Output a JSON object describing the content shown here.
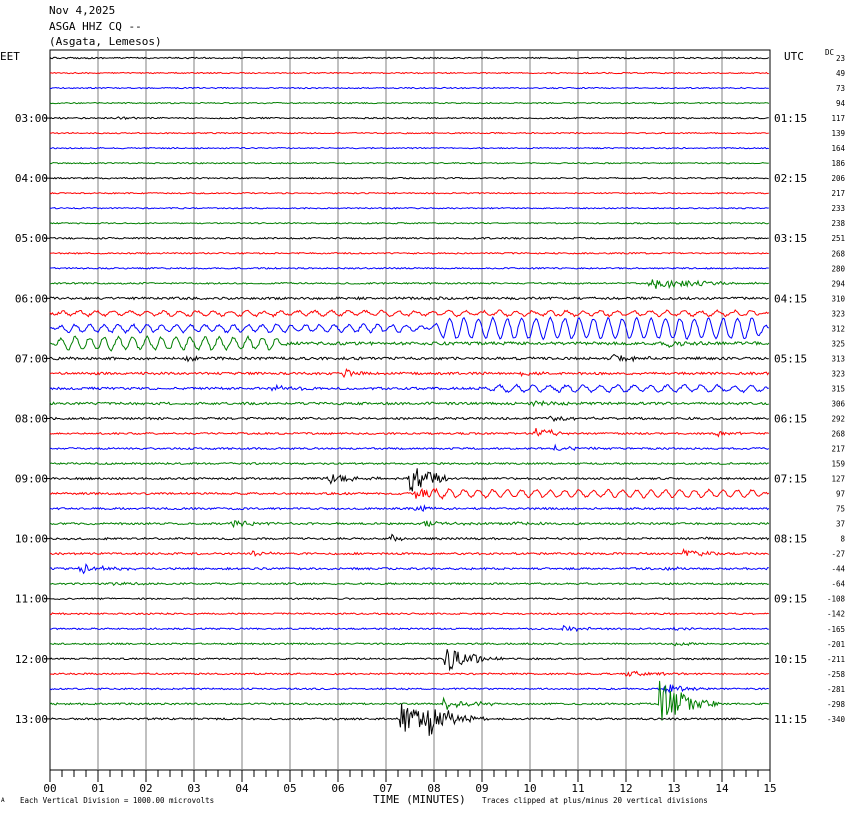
{
  "header": {
    "date": "Nov 4,2025",
    "station": "ASGA HHZ CQ --",
    "location": "(Asgata, Lemesos)"
  },
  "left_zone_label": "EET",
  "right_zone_label": "UTC",
  "dc_label": "DC",
  "footer": {
    "scale_note": "Each Vertical Division = 1000.00 microvolts",
    "x_title": "TIME (MINUTES)",
    "clip_note": "Traces clipped at plus/minus 20 vertical divisions",
    "corner_mark": "A"
  },
  "colors": {
    "trace_cycle": [
      "#000000",
      "#ff0000",
      "#0000ff",
      "#007f00"
    ],
    "grid": "#808080"
  },
  "chart_data": {
    "type": "line",
    "x_axis": {
      "label": "TIME (MINUTES)",
      "range": [
        0,
        15
      ],
      "ticks": [
        "00",
        "01",
        "02",
        "03",
        "04",
        "05",
        "06",
        "07",
        "08",
        "09",
        "10",
        "11",
        "12",
        "13",
        "14",
        "15"
      ]
    },
    "left_hour_labels": [
      {
        "row": 4,
        "text": "03:00"
      },
      {
        "row": 8,
        "text": "04:00"
      },
      {
        "row": 12,
        "text": "05:00"
      },
      {
        "row": 16,
        "text": "06:00"
      },
      {
        "row": 20,
        "text": "07:00"
      },
      {
        "row": 24,
        "text": "08:00"
      },
      {
        "row": 28,
        "text": "09:00"
      },
      {
        "row": 32,
        "text": "10:00"
      },
      {
        "row": 36,
        "text": "11:00"
      },
      {
        "row": 40,
        "text": "12:00"
      },
      {
        "row": 44,
        "text": "13:00"
      }
    ],
    "right_hour_labels": [
      {
        "row": 4,
        "text": "01:15"
      },
      {
        "row": 8,
        "text": "02:15"
      },
      {
        "row": 12,
        "text": "03:15"
      },
      {
        "row": 16,
        "text": "04:15"
      },
      {
        "row": 20,
        "text": "05:15"
      },
      {
        "row": 24,
        "text": "06:15"
      },
      {
        "row": 28,
        "text": "07:15"
      },
      {
        "row": 32,
        "text": "08:15"
      },
      {
        "row": 36,
        "text": "09:15"
      },
      {
        "row": 40,
        "text": "10:15"
      },
      {
        "row": 44,
        "text": "11:15"
      }
    ],
    "dc_offsets": [
      "23",
      "49",
      "73",
      "94",
      "117",
      "139",
      "164",
      "186",
      "206",
      "217",
      "233",
      "238",
      "251",
      "268",
      "280",
      "294",
      "310",
      "323",
      "312",
      "325",
      "313",
      "323",
      "315",
      "306",
      "292",
      "268",
      "217",
      "159",
      "127",
      "97",
      "75",
      "37",
      "8",
      "-27",
      "-44",
      "-64",
      "-108",
      "-142",
      "-165",
      "-201",
      "-211",
      "-258",
      "-281",
      "-298",
      "-340"
    ],
    "rows": [
      {
        "noise": 0.7,
        "events": []
      },
      {
        "noise": 0.6,
        "events": []
      },
      {
        "noise": 0.6,
        "events": []
      },
      {
        "noise": 0.6,
        "events": []
      },
      {
        "noise": 0.7,
        "events": [
          {
            "t": 1.4,
            "amp": 1.5,
            "dur": 0.3
          }
        ]
      },
      {
        "noise": 0.6,
        "events": []
      },
      {
        "noise": 0.6,
        "events": []
      },
      {
        "noise": 0.6,
        "events": []
      },
      {
        "noise": 0.7,
        "events": []
      },
      {
        "noise": 0.6,
        "events": []
      },
      {
        "noise": 0.6,
        "events": []
      },
      {
        "noise": 0.6,
        "events": []
      },
      {
        "noise": 0.8,
        "events": []
      },
      {
        "noise": 0.7,
        "events": []
      },
      {
        "noise": 0.7,
        "events": [
          {
            "t": 4.7,
            "amp": 1.5,
            "dur": 0.2
          }
        ]
      },
      {
        "noise": 0.8,
        "events": [
          {
            "t": 12.5,
            "amp": 6,
            "dur": 0.9
          }
        ]
      },
      {
        "noise": 1.2,
        "events": [
          {
            "t": 7.8,
            "amp": 1.5,
            "dur": 0.3
          }
        ]
      },
      {
        "noise": 1.2,
        "events": [],
        "wave": [
          {
            "from": 0,
            "to": 15,
            "amp": 2.2,
            "period": 0.35
          }
        ]
      },
      {
        "noise": 1.2,
        "events": [],
        "wave": [
          {
            "from": 0,
            "to": 7.9,
            "amp": 3.5,
            "period": 0.3
          },
          {
            "from": 7.9,
            "to": 15,
            "amp": 10,
            "period": 0.3
          }
        ]
      },
      {
        "noise": 1.5,
        "events": [
          {
            "t": 12.8,
            "amp": 4,
            "dur": 0.4
          }
        ],
        "wave": [
          {
            "from": 0,
            "to": 5,
            "amp": 6,
            "period": 0.3
          }
        ]
      },
      {
        "noise": 1.3,
        "events": [
          {
            "t": 2.8,
            "amp": 3,
            "dur": 0.3
          },
          {
            "t": 11.7,
            "amp": 4,
            "dur": 0.5
          }
        ]
      },
      {
        "noise": 1.2,
        "events": [
          {
            "t": 6.1,
            "amp": 6,
            "dur": 0.2
          },
          {
            "t": 9.8,
            "amp": 2,
            "dur": 0.4
          }
        ]
      },
      {
        "noise": 1.2,
        "events": [
          {
            "t": 4.6,
            "amp": 3,
            "dur": 0.5
          }
        ],
        "wave": [
          {
            "from": 9,
            "to": 15,
            "amp": 3,
            "period": 0.35
          }
        ]
      },
      {
        "noise": 1.2,
        "events": [
          {
            "t": 10.0,
            "amp": 3,
            "dur": 0.5
          }
        ]
      },
      {
        "noise": 1.1,
        "events": [
          {
            "t": 10.4,
            "amp": 3,
            "dur": 0.5
          }
        ]
      },
      {
        "noise": 0.9,
        "events": [
          {
            "t": 10.1,
            "amp": 7,
            "dur": 0.4
          },
          {
            "t": 13.9,
            "amp": 3,
            "dur": 0.3
          }
        ]
      },
      {
        "noise": 0.9,
        "events": [
          {
            "t": 10.5,
            "amp": 3,
            "dur": 0.5
          }
        ]
      },
      {
        "noise": 0.9,
        "events": []
      },
      {
        "noise": 1.0,
        "events": [
          {
            "t": 5.8,
            "amp": 5,
            "dur": 0.5
          },
          {
            "t": 7.5,
            "amp": 22,
            "dur": 0.35
          }
        ]
      },
      {
        "noise": 1.0,
        "events": [
          {
            "t": 7.6,
            "amp": 8,
            "dur": 0.3
          }
        ],
        "wave": [
          {
            "from": 7.8,
            "to": 15,
            "amp": 3.5,
            "period": 0.3
          }
        ]
      },
      {
        "noise": 1.0,
        "events": [
          {
            "t": 7.6,
            "amp": 4,
            "dur": 0.3
          }
        ]
      },
      {
        "noise": 1.0,
        "events": [
          {
            "t": 3.8,
            "amp": 4,
            "dur": 0.6
          },
          {
            "t": 7.8,
            "amp": 3,
            "dur": 0.5
          },
          {
            "t": 9.6,
            "amp": 1.5,
            "dur": 0.5
          }
        ]
      },
      {
        "noise": 1.0,
        "events": [
          {
            "t": 7.1,
            "amp": 4,
            "dur": 0.2
          },
          {
            "t": 13.5,
            "amp": 2,
            "dur": 0.4
          }
        ]
      },
      {
        "noise": 1.0,
        "events": [
          {
            "t": 4.2,
            "amp": 3,
            "dur": 0.3
          },
          {
            "t": 13.2,
            "amp": 5,
            "dur": 0.4
          }
        ]
      },
      {
        "noise": 1.0,
        "events": [
          {
            "t": 0.6,
            "amp": 5,
            "dur": 0.5
          },
          {
            "t": 12.8,
            "amp": 2,
            "dur": 0.4
          }
        ]
      },
      {
        "noise": 0.9,
        "events": [
          {
            "t": 1.3,
            "amp": 2,
            "dur": 0.4
          }
        ]
      },
      {
        "noise": 0.8,
        "events": []
      },
      {
        "noise": 0.8,
        "events": []
      },
      {
        "noise": 0.8,
        "events": [
          {
            "t": 10.7,
            "amp": 3,
            "dur": 0.5
          },
          {
            "t": 12.9,
            "amp": 2,
            "dur": 0.3
          }
        ]
      },
      {
        "noise": 0.8,
        "events": [
          {
            "t": 13.0,
            "amp": 2.5,
            "dur": 0.3
          }
        ]
      },
      {
        "noise": 0.8,
        "events": [
          {
            "t": 8.2,
            "amp": 16,
            "dur": 0.5
          }
        ]
      },
      {
        "noise": 0.8,
        "events": [
          {
            "t": 12.0,
            "amp": 3,
            "dur": 0.6
          }
        ]
      },
      {
        "noise": 0.8,
        "events": [
          {
            "t": 12.8,
            "amp": 6,
            "dur": 0.4
          }
        ]
      },
      {
        "noise": 0.9,
        "events": [
          {
            "t": 8.2,
            "amp": 6,
            "dur": 0.6
          },
          {
            "t": 12.7,
            "amp": 28,
            "dur": 0.5
          }
        ]
      },
      {
        "noise": 0.9,
        "events": [
          {
            "t": 7.3,
            "amp": 20,
            "dur": 0.5
          },
          {
            "t": 7.9,
            "amp": 16,
            "dur": 0.5
          }
        ]
      }
    ]
  }
}
